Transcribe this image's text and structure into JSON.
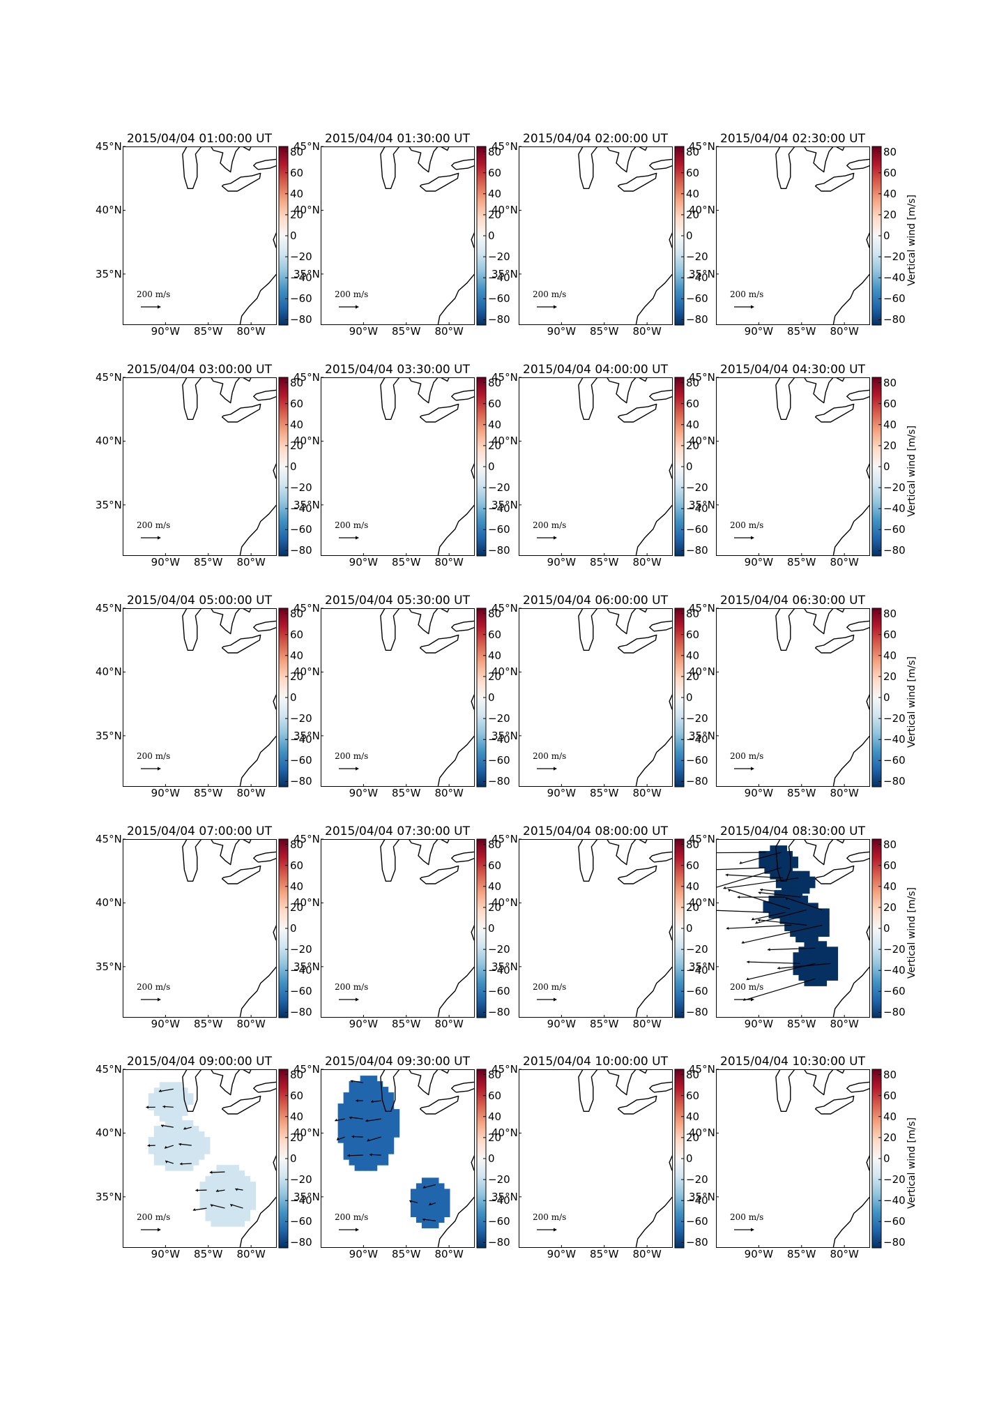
{
  "figure": {
    "colorbar": {
      "label": "Vertical wind [m/s]",
      "ticks": [
        "80",
        "60",
        "40",
        "20",
        "0",
        "−20",
        "−40",
        "−60",
        "−80"
      ],
      "range": [
        -85,
        85
      ],
      "colormap": [
        "#67001f",
        "#b2182b",
        "#d6604d",
        "#f4a582",
        "#fddbc7",
        "#f7f7f7",
        "#d1e5f0",
        "#92c5de",
        "#4393c3",
        "#2166ac",
        "#053061"
      ]
    },
    "map": {
      "lat_labels": [
        "45°N",
        "40°N",
        "35°N"
      ],
      "lon_labels": [
        "90°W",
        "85°W",
        "80°W"
      ],
      "scale_label": "200 m/s",
      "coastline_color": "#000000"
    },
    "panels": [
      {
        "title": "2015/04/04 01:00:00 UT"
      },
      {
        "title": "2015/04/04 01:30:00 UT"
      },
      {
        "title": "2015/04/04 02:00:00 UT"
      },
      {
        "title": "2015/04/04 02:30:00 UT"
      },
      {
        "title": "2015/04/04 03:00:00 UT"
      },
      {
        "title": "2015/04/04 03:30:00 UT"
      },
      {
        "title": "2015/04/04 04:00:00 UT"
      },
      {
        "title": "2015/04/04 04:30:00 UT"
      },
      {
        "title": "2015/04/04 05:00:00 UT"
      },
      {
        "title": "2015/04/04 05:30:00 UT"
      },
      {
        "title": "2015/04/04 06:00:00 UT"
      },
      {
        "title": "2015/04/04 06:30:00 UT"
      },
      {
        "title": "2015/04/04 07:00:00 UT"
      },
      {
        "title": "2015/04/04 07:30:00 UT"
      },
      {
        "title": "2015/04/04 08:00:00 UT"
      },
      {
        "title": "2015/04/04 08:30:00 UT",
        "fields": [
          {
            "value": -85,
            "lon_range": [
              -90,
              -85.5
            ],
            "lat_range": [
              42,
              44.5
            ]
          },
          {
            "value": -85,
            "lon_range": [
              -88,
              -83.5
            ],
            "lat_range": [
              40.5,
              42.5
            ]
          },
          {
            "value": -85,
            "lon_range": [
              -89.5,
              -84
            ],
            "lat_range": [
              38.5,
              41
            ]
          },
          {
            "value": -85,
            "lon_range": [
              -87,
              -81.5
            ],
            "lat_range": [
              37,
              40
            ]
          },
          {
            "value": -85,
            "lon_range": [
              -86,
              -80.5
            ],
            "lat_range": [
              33.5,
              37
            ]
          }
        ]
      },
      {
        "title": "2015/04/04 09:00:00 UT",
        "fields": [
          {
            "value": -17,
            "lon_range": [
              -92,
              -87
            ],
            "lat_range": [
              41,
              44
            ]
          },
          {
            "value": -17,
            "lon_range": [
              -92,
              -85
            ],
            "lat_range": [
              37,
              41
            ]
          },
          {
            "value": -17,
            "lon_range": [
              -86,
              -79.5
            ],
            "lat_range": [
              32.5,
              37.5
            ]
          }
        ]
      },
      {
        "title": "2015/04/04 09:30:00 UT",
        "fields": [
          {
            "value": -60,
            "lon_range": [
              -93,
              -86
            ],
            "lat_range": [
              37,
              44.5
            ]
          },
          {
            "value": -60,
            "lon_range": [
              -84.5,
              -80
            ],
            "lat_range": [
              32.5,
              36.5
            ]
          }
        ]
      },
      {
        "title": "2015/04/04 10:00:00 UT"
      },
      {
        "title": "2015/04/04 10:30:00 UT"
      }
    ]
  }
}
